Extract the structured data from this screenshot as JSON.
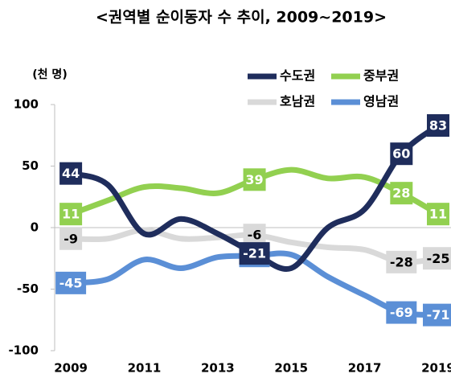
{
  "chart_data": {
    "type": "line",
    "title": "<권역별 순이동자 수 추이, 2009~2019>",
    "unit_label": "(천 명)",
    "x": [
      2009,
      2010,
      2011,
      2012,
      2013,
      2014,
      2015,
      2016,
      2017,
      2018,
      2019
    ],
    "xlim": [
      2008.56,
      2019.35
    ],
    "xticks": [
      2009,
      2011,
      2013,
      2015,
      2017,
      2019
    ],
    "ylim": [
      -100,
      100
    ],
    "yticks": [
      -100,
      -50,
      0,
      50,
      100
    ],
    "smooth": true,
    "series": [
      {
        "name": "수도권",
        "color": "#1f2d5c",
        "label_text_color": "#ffffff",
        "values": [
          44,
          35,
          -5,
          7,
          -5,
          -21,
          -33,
          0,
          15,
          60,
          83
        ],
        "value_labels": [
          "44",
          null,
          null,
          null,
          null,
          "-21",
          null,
          null,
          null,
          "60",
          "83"
        ]
      },
      {
        "name": "중부권",
        "color": "#92d050",
        "label_text_color": "#ffffff",
        "values": [
          11,
          22,
          33,
          32,
          28,
          39,
          47,
          40,
          41,
          28,
          11
        ],
        "value_labels": [
          "11",
          null,
          null,
          null,
          null,
          "39",
          null,
          null,
          null,
          "28",
          "11"
        ]
      },
      {
        "name": "호남권",
        "color": "#d9d9d9",
        "label_text_color": "#000000",
        "values": [
          -9,
          -9,
          -2,
          -9,
          -8,
          -6,
          -12,
          -16,
          -18,
          -28,
          -25
        ],
        "value_labels": [
          "-9",
          null,
          null,
          null,
          null,
          "-6",
          null,
          null,
          null,
          "-28",
          "-25"
        ]
      },
      {
        "name": "영남권",
        "color": "#5b8fd6",
        "label_text_color": "#ffffff",
        "values": [
          -45,
          -42,
          -26,
          -33,
          -24,
          -23,
          -22,
          -40,
          -55,
          -69,
          -71
        ],
        "value_labels": [
          "-45",
          null,
          null,
          null,
          null,
          "-23",
          null,
          null,
          null,
          "-69",
          "-71"
        ]
      }
    ]
  }
}
